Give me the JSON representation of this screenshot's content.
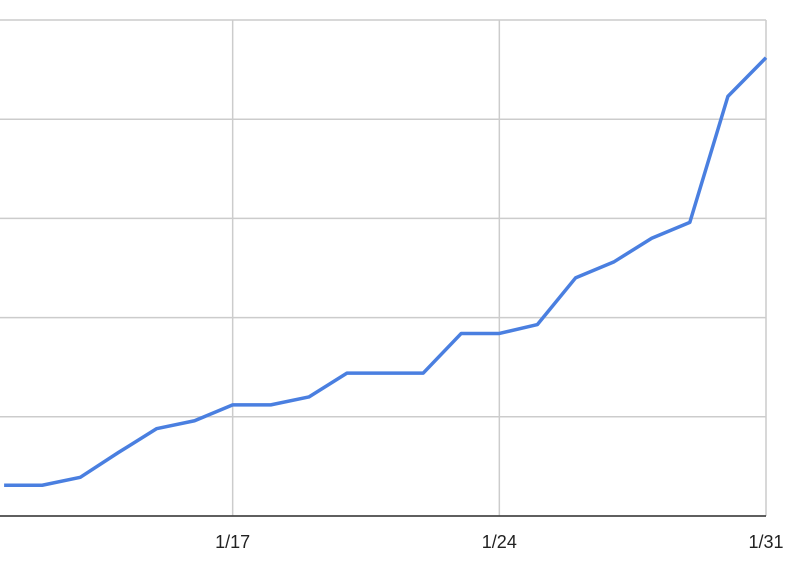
{
  "chart_data": {
    "type": "line",
    "categories": [
      null,
      null,
      null,
      null,
      null,
      null,
      "1/17",
      null,
      null,
      null,
      null,
      null,
      null,
      "1/24",
      null,
      null,
      null,
      null,
      null,
      null,
      "1/31"
    ],
    "series": [
      {
        "color": "#4a7fe0",
        "values": [
          0.31,
          0.31,
          0.39,
          0.64,
          0.88,
          0.96,
          1.12,
          1.12,
          1.2,
          1.44,
          1.44,
          1.44,
          1.84,
          1.84,
          1.93,
          2.4,
          2.56,
          2.8,
          2.96,
          4.23,
          4.62
        ]
      }
    ],
    "ylim": [
      0,
      5
    ],
    "yticks": [
      0,
      1,
      2,
      3,
      4,
      5
    ],
    "grid": true
  }
}
